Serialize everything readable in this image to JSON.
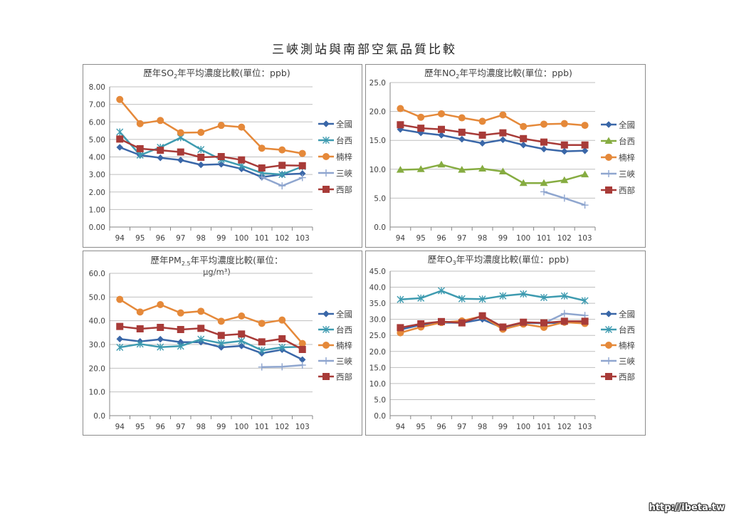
{
  "page": {
    "title": "三峽測站與南部空氣品質比較",
    "watermark": "http://ibeta.tw"
  },
  "legend_names": [
    "全國",
    "台西",
    "楠梓",
    "三峽",
    "西部"
  ],
  "series_colors": {
    "全國": "#3a67a8",
    "台西": "#3e9bb0",
    "楠梓": "#e5893a",
    "三峽": "#8fa6cf",
    "西部": "#a83b38",
    "台西_no2": "#86ac41"
  },
  "chart_data": [
    {
      "id": "so2",
      "type": "line",
      "title_pre": "歷年SO",
      "title_sub": "2",
      "title_post": "年平均濃度比較(單位：ppb)",
      "title_line2": "",
      "categories": [
        "94",
        "95",
        "96",
        "97",
        "98",
        "99",
        "100",
        "101",
        "102",
        "103"
      ],
      "ylim": [
        0,
        8
      ],
      "yticks": [
        "0.00",
        "1.00",
        "2.00",
        "3.00",
        "4.00",
        "5.00",
        "6.00",
        "7.00",
        "8.00"
      ],
      "grid": true,
      "legend_position": "right",
      "series": [
        {
          "name": "全國",
          "marker": "diamond",
          "values": [
            4.55,
            4.1,
            3.95,
            3.82,
            3.55,
            3.58,
            3.32,
            2.85,
            3.0,
            3.05
          ]
        },
        {
          "name": "台西",
          "marker": "star",
          "values": [
            5.42,
            4.1,
            4.55,
            5.1,
            4.42,
            3.85,
            3.5,
            3.08,
            3.0,
            3.45
          ]
        },
        {
          "name": "楠梓",
          "marker": "circle",
          "values": [
            7.28,
            5.9,
            6.08,
            5.38,
            5.4,
            5.8,
            5.7,
            4.5,
            4.4,
            4.2
          ]
        },
        {
          "name": "三峽",
          "marker": "plus",
          "values": [
            null,
            null,
            null,
            null,
            null,
            null,
            null,
            2.85,
            2.35,
            2.82
          ]
        },
        {
          "name": "西部",
          "marker": "square",
          "values": [
            5.02,
            4.47,
            4.38,
            4.28,
            3.98,
            4.02,
            3.83,
            3.37,
            3.52,
            3.5
          ]
        }
      ]
    },
    {
      "id": "no2",
      "type": "line",
      "title_pre": "歷年NO",
      "title_sub": "2",
      "title_post": "年平均濃度比較(單位：ppb)",
      "title_line2": "",
      "categories": [
        "94",
        "95",
        "96",
        "97",
        "98",
        "99",
        "100",
        "101",
        "102",
        "103"
      ],
      "ylim": [
        0,
        25
      ],
      "yticks": [
        "0.0",
        "5.0",
        "10.0",
        "15.0",
        "20.0",
        "25.0"
      ],
      "grid": true,
      "legend_position": "right",
      "series": [
        {
          "name": "全國",
          "marker": "diamond",
          "values": [
            16.9,
            16.3,
            15.9,
            15.2,
            14.5,
            15.1,
            14.2,
            13.5,
            13.1,
            13.2
          ]
        },
        {
          "name": "台西",
          "marker": "triangle",
          "color_key": "台西_no2",
          "values": [
            9.9,
            10.0,
            10.8,
            9.9,
            10.1,
            9.6,
            7.6,
            7.6,
            8.1,
            9.1
          ]
        },
        {
          "name": "楠梓",
          "marker": "circle",
          "values": [
            20.5,
            19.0,
            19.6,
            18.9,
            18.3,
            19.4,
            17.4,
            17.8,
            17.9,
            17.6
          ]
        },
        {
          "name": "三峽",
          "marker": "plus",
          "values": [
            null,
            null,
            null,
            null,
            null,
            null,
            null,
            6.1,
            5.0,
            3.8
          ]
        },
        {
          "name": "西部",
          "marker": "square",
          "values": [
            17.7,
            17.1,
            16.9,
            16.4,
            15.9,
            16.3,
            15.3,
            14.7,
            14.2,
            14.2
          ]
        }
      ]
    },
    {
      "id": "pm25",
      "type": "line",
      "title_pre": "歷年PM",
      "title_sub": "2.5",
      "title_post": "年平均濃度比較(單位：",
      "title_line2": "μg/m³)",
      "categories": [
        "94",
        "95",
        "96",
        "97",
        "98",
        "99",
        "100",
        "101",
        "102",
        "103"
      ],
      "ylim": [
        0,
        60
      ],
      "yticks": [
        "0.0",
        "10.0",
        "20.0",
        "30.0",
        "40.0",
        "50.0",
        "60.0"
      ],
      "grid": true,
      "legend_position": "right",
      "series": [
        {
          "name": "全國",
          "marker": "diamond",
          "values": [
            32.3,
            31.3,
            32.2,
            31.0,
            31.0,
            28.8,
            29.4,
            26.3,
            27.8,
            23.6
          ]
        },
        {
          "name": "台西",
          "marker": "star",
          "values": [
            28.8,
            30.2,
            28.9,
            29.3,
            32.2,
            30.5,
            31.5,
            27.5,
            28.8,
            29.0
          ]
        },
        {
          "name": "楠梓",
          "marker": "circle",
          "values": [
            49.0,
            43.7,
            46.8,
            43.3,
            44.0,
            39.8,
            42.0,
            38.9,
            40.3,
            30.4
          ]
        },
        {
          "name": "三峽",
          "marker": "plus",
          "values": [
            null,
            null,
            null,
            null,
            null,
            null,
            null,
            20.5,
            20.6,
            21.3
          ]
        },
        {
          "name": "西部",
          "marker": "square",
          "values": [
            37.6,
            36.6,
            37.2,
            36.3,
            36.8,
            33.8,
            34.4,
            31.1,
            32.4,
            27.9
          ]
        }
      ]
    },
    {
      "id": "o3",
      "type": "line",
      "title_pre": "歷年O",
      "title_sub": "3",
      "title_post": "年平均濃度比較(單位：ppb)",
      "title_line2": "",
      "categories": [
        "94",
        "95",
        "96",
        "97",
        "98",
        "99",
        "100",
        "101",
        "102",
        "103"
      ],
      "ylim": [
        0,
        45
      ],
      "yticks": [
        "0.0",
        "5.0",
        "10.0",
        "15.0",
        "20.0",
        "25.0",
        "30.0",
        "35.0",
        "40.0",
        "45.0"
      ],
      "grid": true,
      "legend_position": "right",
      "series": [
        {
          "name": "全國",
          "marker": "diamond",
          "values": [
            26.8,
            28.3,
            29.0,
            28.9,
            30.0,
            27.3,
            28.9,
            28.8,
            29.0,
            29.2
          ]
        },
        {
          "name": "台西",
          "marker": "star",
          "values": [
            36.2,
            36.6,
            38.9,
            36.4,
            36.3,
            37.3,
            37.9,
            36.8,
            37.3,
            35.8
          ]
        },
        {
          "name": "楠梓",
          "marker": "circle",
          "values": [
            25.8,
            27.6,
            29.0,
            29.5,
            31.0,
            26.9,
            28.5,
            27.5,
            29.1,
            28.7
          ]
        },
        {
          "name": "三峽",
          "marker": "plus",
          "values": [
            null,
            null,
            null,
            null,
            null,
            null,
            null,
            28.8,
            31.8,
            31.2
          ]
        },
        {
          "name": "西部",
          "marker": "square",
          "values": [
            27.4,
            28.6,
            29.3,
            28.9,
            31.1,
            27.6,
            29.1,
            28.9,
            29.4,
            29.4
          ]
        }
      ]
    }
  ]
}
